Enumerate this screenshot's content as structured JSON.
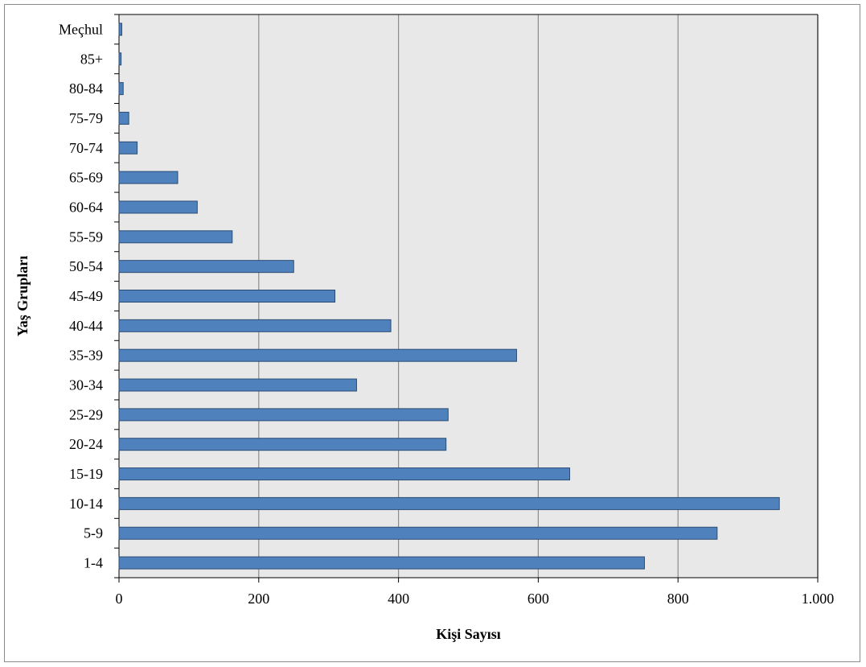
{
  "colors": {
    "bar_fill": "#4f81bd",
    "bar_stroke": "#2c4d75",
    "plot_background": "#e8e8e8",
    "gridline": "#8c8c8c"
  },
  "chart_data": {
    "type": "bar",
    "orientation": "horizontal",
    "categories": [
      "1-4",
      "5-9",
      "10-14",
      "15-19",
      "20-24",
      "25-29",
      "30-34",
      "35-39",
      "40-44",
      "45-49",
      "50-54",
      "55-59",
      "60-64",
      "65-69",
      "70-74",
      "75-79",
      "80-84",
      "85+",
      "Meçhul"
    ],
    "values": [
      752,
      856,
      945,
      645,
      468,
      471,
      340,
      569,
      389,
      309,
      250,
      162,
      112,
      84,
      26,
      14,
      6,
      3,
      4
    ],
    "xlabel": "Kişi Sayısı",
    "ylabel": "Yaş Grupları",
    "xlim": [
      0,
      1000
    ],
    "x_ticks": [
      0,
      200,
      400,
      600,
      800,
      1000
    ],
    "x_tick_labels": [
      "0",
      "200",
      "400",
      "600",
      "800",
      "1.000"
    ],
    "grid": "vertical major gridlines",
    "legend": "none"
  }
}
